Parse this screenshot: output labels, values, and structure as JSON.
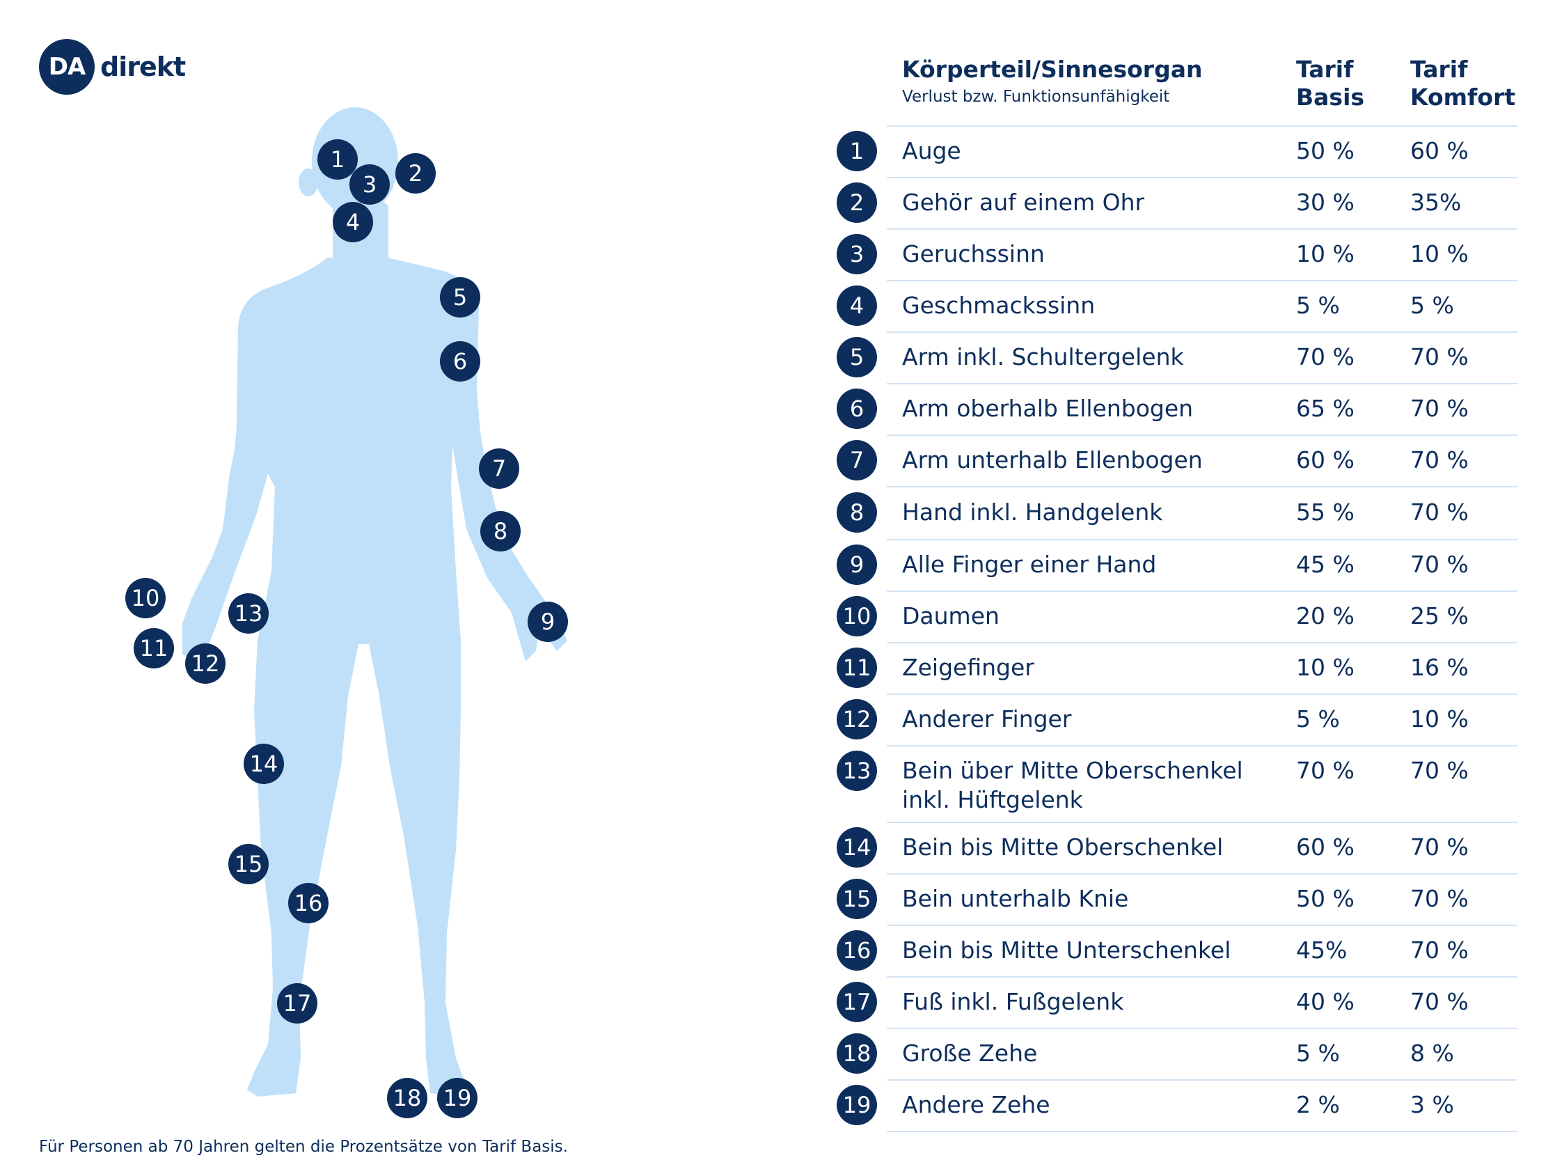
{
  "logo": {
    "mark": "DA",
    "word": "direkt"
  },
  "header": {
    "title": "Körperteil/Sinnesorgan",
    "subtitle": "Verlust bzw. Funktionsunfähigkeit",
    "col_basis": "Tarif Basis",
    "col_komfort": "Tarif Komfort"
  },
  "rows": [
    {
      "num": "1",
      "label": "Auge",
      "basis": "50 %",
      "komfort": "60 %"
    },
    {
      "num": "2",
      "label": "Gehör auf einem Ohr",
      "basis": "30 %",
      "komfort": "35%"
    },
    {
      "num": "3",
      "label": "Geruchssinn",
      "basis": "10 %",
      "komfort": "10 %"
    },
    {
      "num": "4",
      "label": "Geschmackssinn",
      "basis": "5 %",
      "komfort": "5 %"
    },
    {
      "num": "5",
      "label": "Arm inkl. Schultergelenk",
      "basis": "70 %",
      "komfort": "70 %"
    },
    {
      "num": "6",
      "label": "Arm oberhalb Ellenbogen",
      "basis": "65 %",
      "komfort": "70 %"
    },
    {
      "num": "7",
      "label": "Arm unterhalb Ellenbogen",
      "basis": "60 %",
      "komfort": "70 %"
    },
    {
      "num": "8",
      "label": "Hand inkl. Handgelenk",
      "basis": "55 %",
      "komfort": "70 %"
    },
    {
      "num": "9",
      "label": "Alle Finger einer Hand",
      "basis": "45 %",
      "komfort": "70 %"
    },
    {
      "num": "10",
      "label": "Daumen",
      "basis": "20 %",
      "komfort": "25 %"
    },
    {
      "num": "11",
      "label": "Zeigefinger",
      "basis": "10 %",
      "komfort": "16 %"
    },
    {
      "num": "12",
      "label": "Anderer Finger",
      "basis": "5 %",
      "komfort": "10 %"
    },
    {
      "num": "13",
      "label": "Bein über Mitte Oberschenkel inkl. Hüftgelenk",
      "basis": "70 %",
      "komfort": "70 %"
    },
    {
      "num": "14",
      "label": "Bein bis Mitte Oberschenkel",
      "basis": "60 %",
      "komfort": "70 %"
    },
    {
      "num": "15",
      "label": "Bein unterhalb Knie",
      "basis": "50 %",
      "komfort": "70 %"
    },
    {
      "num": "16",
      "label": "Bein bis Mitte Unterschenkel",
      "basis": "45%",
      "komfort": "70 %"
    },
    {
      "num": "17",
      "label": "Fuß inkl. Fußgelenk",
      "basis": "40 %",
      "komfort": "70 %"
    },
    {
      "num": "18",
      "label": "Große Zehe",
      "basis": "5 %",
      "komfort": "8 %"
    },
    {
      "num": "19",
      "label": "Andere Zehe",
      "basis": "2 %",
      "komfort": "3 %"
    }
  ],
  "markers": [
    "1",
    "2",
    "3",
    "4",
    "5",
    "6",
    "7",
    "8",
    "9",
    "10",
    "11",
    "12",
    "13",
    "14",
    "15",
    "16",
    "17",
    "18",
    "19"
  ],
  "footnote": "Für Personen ab 70 Jahren gelten die Prozentsätze von Tarif Basis.",
  "colors": {
    "navy": "#0d2e5c",
    "body": "#bfe0f8",
    "divider": "#d3e3f3"
  }
}
